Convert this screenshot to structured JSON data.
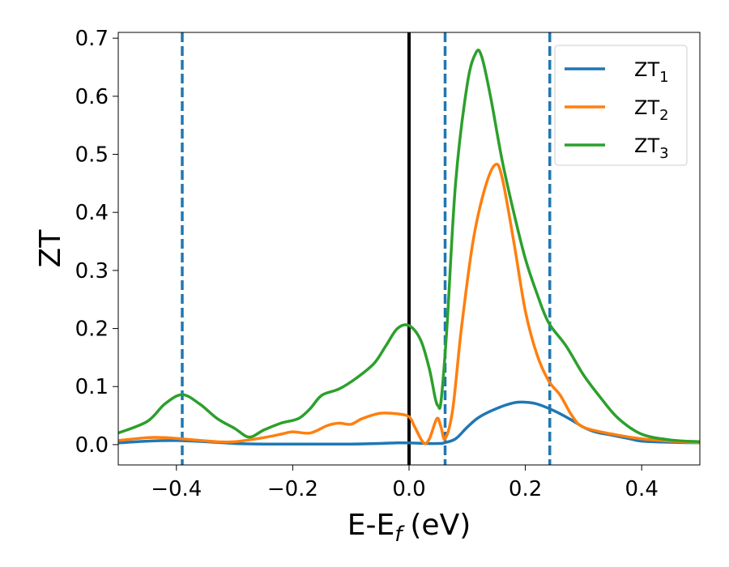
{
  "chart_data": {
    "type": "line",
    "xlabel": "E-E",
    "xlabel_sub": "f",
    "xlabel_unit": "(eV)",
    "ylabel": "ZT",
    "xlim": [
      -0.5,
      0.5
    ],
    "ylim": [
      -0.035,
      0.71
    ],
    "xticks": [
      -0.4,
      -0.2,
      0.0,
      0.2,
      0.4
    ],
    "xtick_labels": [
      "−0.4",
      "−0.2",
      "0.0",
      "0.2",
      "0.4"
    ],
    "yticks": [
      0.0,
      0.1,
      0.2,
      0.3,
      0.4,
      0.5,
      0.6,
      0.7
    ],
    "ytick_labels": [
      "0.0",
      "0.1",
      "0.2",
      "0.3",
      "0.4",
      "0.5",
      "0.6",
      "0.7"
    ],
    "grid": false,
    "legend_position": "top-right",
    "vertical_lines": [
      {
        "x": -0.39,
        "style": "dashed",
        "color": "#1f77b4"
      },
      {
        "x": 0.0,
        "style": "solid",
        "color": "#000000"
      },
      {
        "x": 0.062,
        "style": "dashed",
        "color": "#1f77b4"
      },
      {
        "x": 0.242,
        "style": "dashed",
        "color": "#1f77b4"
      }
    ],
    "series": [
      {
        "name": "ZT",
        "name_sub": "1",
        "color": "#1f77b4",
        "points": [
          [
            -0.5,
            0.003
          ],
          [
            -0.45,
            0.006
          ],
          [
            -0.4,
            0.007
          ],
          [
            -0.35,
            0.005
          ],
          [
            -0.3,
            0.002
          ],
          [
            -0.25,
            0.001
          ],
          [
            -0.2,
            0.001
          ],
          [
            -0.15,
            0.001
          ],
          [
            -0.1,
            0.001
          ],
          [
            -0.05,
            0.002
          ],
          [
            -0.02,
            0.003
          ],
          [
            0.0,
            0.003
          ],
          [
            0.03,
            0.002
          ],
          [
            0.05,
            0.002
          ],
          [
            0.06,
            0.003
          ],
          [
            0.08,
            0.01
          ],
          [
            0.1,
            0.03
          ],
          [
            0.12,
            0.047
          ],
          [
            0.15,
            0.062
          ],
          [
            0.18,
            0.072
          ],
          [
            0.2,
            0.073
          ],
          [
            0.22,
            0.07
          ],
          [
            0.25,
            0.058
          ],
          [
            0.28,
            0.042
          ],
          [
            0.3,
            0.03
          ],
          [
            0.32,
            0.022
          ],
          [
            0.35,
            0.016
          ],
          [
            0.38,
            0.01
          ],
          [
            0.4,
            0.006
          ],
          [
            0.45,
            0.004
          ],
          [
            0.5,
            0.003
          ]
        ]
      },
      {
        "name": "ZT",
        "name_sub": "2",
        "color": "#ff7f0e",
        "points": [
          [
            -0.5,
            0.007
          ],
          [
            -0.45,
            0.012
          ],
          [
            -0.42,
            0.012
          ],
          [
            -0.38,
            0.009
          ],
          [
            -0.33,
            0.005
          ],
          [
            -0.3,
            0.005
          ],
          [
            -0.25,
            0.012
          ],
          [
            -0.22,
            0.018
          ],
          [
            -0.2,
            0.022
          ],
          [
            -0.17,
            0.02
          ],
          [
            -0.14,
            0.033
          ],
          [
            -0.12,
            0.037
          ],
          [
            -0.1,
            0.035
          ],
          [
            -0.08,
            0.045
          ],
          [
            -0.05,
            0.054
          ],
          [
            -0.02,
            0.053
          ],
          [
            0.0,
            0.048
          ],
          [
            0.01,
            0.03
          ],
          [
            0.025,
            0.003
          ],
          [
            0.035,
            0.01
          ],
          [
            0.048,
            0.045
          ],
          [
            0.055,
            0.03
          ],
          [
            0.062,
            0.01
          ],
          [
            0.075,
            0.06
          ],
          [
            0.09,
            0.2
          ],
          [
            0.11,
            0.35
          ],
          [
            0.13,
            0.44
          ],
          [
            0.148,
            0.482
          ],
          [
            0.16,
            0.46
          ],
          [
            0.18,
            0.35
          ],
          [
            0.2,
            0.23
          ],
          [
            0.22,
            0.155
          ],
          [
            0.24,
            0.11
          ],
          [
            0.26,
            0.085
          ],
          [
            0.28,
            0.05
          ],
          [
            0.3,
            0.03
          ],
          [
            0.35,
            0.018
          ],
          [
            0.4,
            0.01
          ],
          [
            0.45,
            0.006
          ],
          [
            0.5,
            0.003
          ]
        ]
      },
      {
        "name": "ZT",
        "name_sub": "3",
        "color": "#2ca02c",
        "points": [
          [
            -0.5,
            0.02
          ],
          [
            -0.45,
            0.04
          ],
          [
            -0.42,
            0.07
          ],
          [
            -0.39,
            0.086
          ],
          [
            -0.36,
            0.07
          ],
          [
            -0.33,
            0.045
          ],
          [
            -0.3,
            0.028
          ],
          [
            -0.275,
            0.013
          ],
          [
            -0.25,
            0.025
          ],
          [
            -0.22,
            0.037
          ],
          [
            -0.19,
            0.045
          ],
          [
            -0.17,
            0.062
          ],
          [
            -0.15,
            0.085
          ],
          [
            -0.12,
            0.096
          ],
          [
            -0.09,
            0.115
          ],
          [
            -0.06,
            0.14
          ],
          [
            -0.04,
            0.17
          ],
          [
            -0.02,
            0.2
          ],
          [
            0.0,
            0.205
          ],
          [
            0.02,
            0.18
          ],
          [
            0.035,
            0.13
          ],
          [
            0.045,
            0.08
          ],
          [
            0.05,
            0.067
          ],
          [
            0.055,
            0.075
          ],
          [
            0.065,
            0.2
          ],
          [
            0.08,
            0.45
          ],
          [
            0.1,
            0.62
          ],
          [
            0.115,
            0.675
          ],
          [
            0.125,
            0.668
          ],
          [
            0.14,
            0.6
          ],
          [
            0.16,
            0.49
          ],
          [
            0.18,
            0.4
          ],
          [
            0.2,
            0.32
          ],
          [
            0.22,
            0.26
          ],
          [
            0.24,
            0.21
          ],
          [
            0.27,
            0.17
          ],
          [
            0.3,
            0.12
          ],
          [
            0.33,
            0.08
          ],
          [
            0.36,
            0.045
          ],
          [
            0.4,
            0.018
          ],
          [
            0.45,
            0.008
          ],
          [
            0.5,
            0.005
          ]
        ]
      }
    ]
  }
}
